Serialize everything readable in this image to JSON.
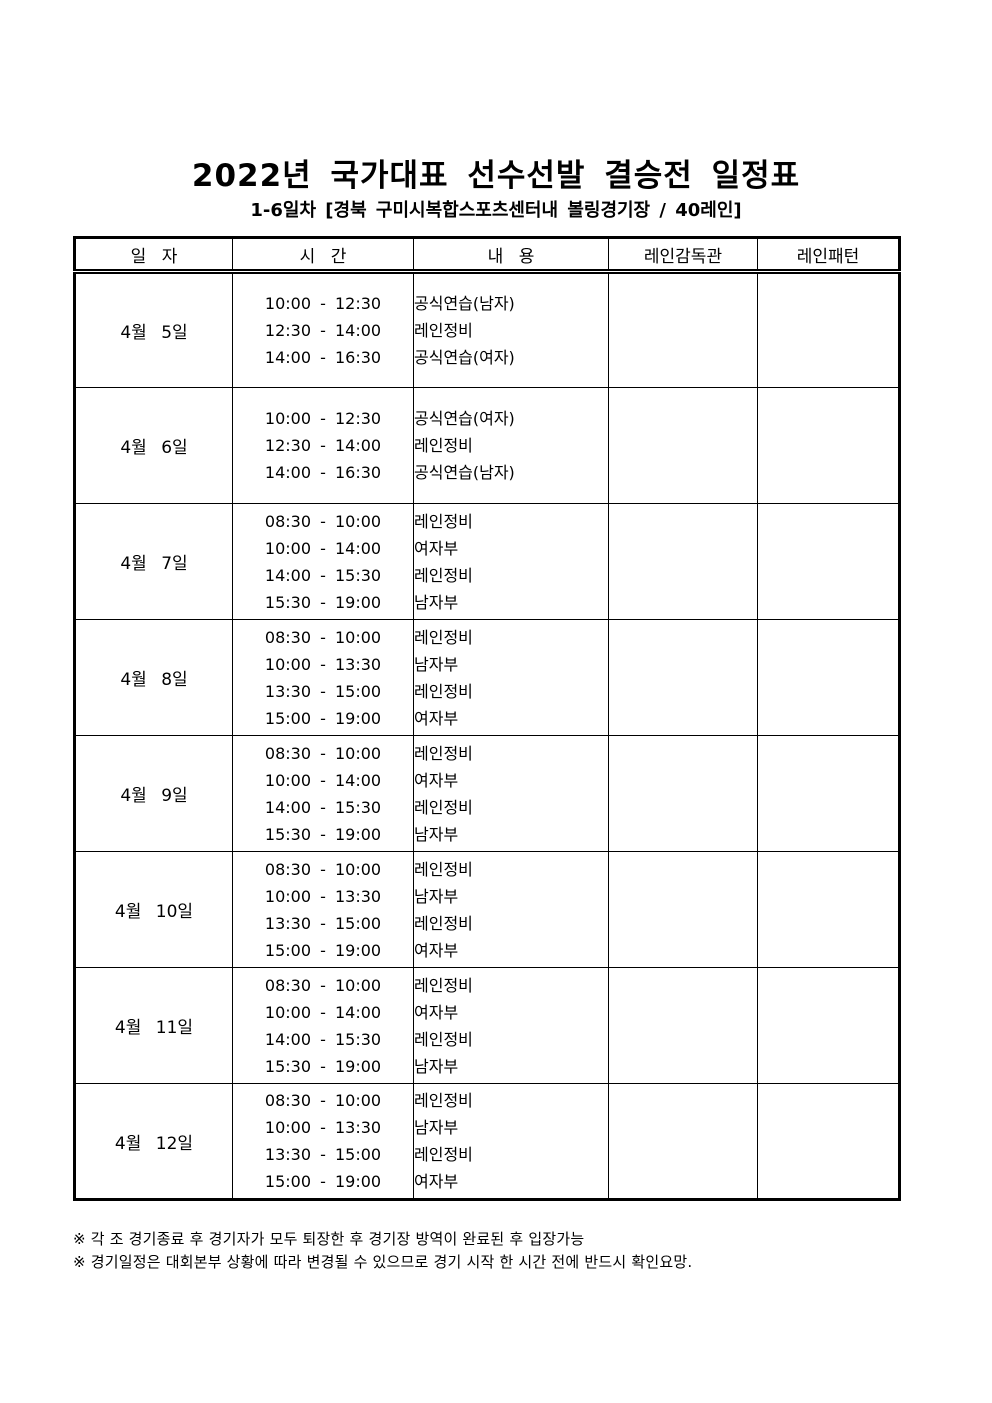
{
  "page": {
    "title": "2022년 국가대표 선수선발 결승전 일정표",
    "subtitle": "1-6일차 [경북 구미시복합스포츠센터내 볼링경기장 / 40레인]"
  },
  "table": {
    "headers": [
      "일 자",
      "시 간",
      "내 용",
      "레인감독관",
      "레인패턴"
    ],
    "rows": [
      {
        "date": "4월 5일",
        "times": [
          "10:00 - 12:30",
          "12:30 - 14:00",
          "14:00 - 16:30"
        ],
        "contents": [
          "공식연습(남자)",
          "레인정비",
          "공식연습(여자)"
        ],
        "lane_supervisor": "",
        "lane_pattern": ""
      },
      {
        "date": "4월 6일",
        "times": [
          "10:00 - 12:30",
          "12:30 - 14:00",
          "14:00 - 16:30"
        ],
        "contents": [
          "공식연습(여자)",
          "레인정비",
          "공식연습(남자)"
        ],
        "lane_supervisor": "",
        "lane_pattern": ""
      },
      {
        "date": "4월 7일",
        "times": [
          "08:30 - 10:00",
          "10:00 - 14:00",
          "14:00 - 15:30",
          "15:30 - 19:00"
        ],
        "contents": [
          "레인정비",
          "여자부",
          "레인정비",
          "남자부"
        ],
        "lane_supervisor": "",
        "lane_pattern": ""
      },
      {
        "date": "4월 8일",
        "times": [
          "08:30 - 10:00",
          "10:00 - 13:30",
          "13:30 - 15:00",
          "15:00 - 19:00"
        ],
        "contents": [
          "레인정비",
          "남자부",
          "레인정비",
          "여자부"
        ],
        "lane_supervisor": "",
        "lane_pattern": ""
      },
      {
        "date": "4월 9일",
        "times": [
          "08:30 - 10:00",
          "10:00 - 14:00",
          "14:00 - 15:30",
          "15:30 - 19:00"
        ],
        "contents": [
          "레인정비",
          "여자부",
          "레인정비",
          "남자부"
        ],
        "lane_supervisor": "",
        "lane_pattern": ""
      },
      {
        "date": "4월 10일",
        "times": [
          "08:30 - 10:00",
          "10:00 - 13:30",
          "13:30 - 15:00",
          "15:00 - 19:00"
        ],
        "contents": [
          "레인정비",
          "남자부",
          "레인정비",
          "여자부"
        ],
        "lane_supervisor": "",
        "lane_pattern": ""
      },
      {
        "date": "4월 11일",
        "times": [
          "08:30 - 10:00",
          "10:00 - 14:00",
          "14:00 - 15:30",
          "15:30 - 19:00"
        ],
        "contents": [
          "레인정비",
          "여자부",
          "레인정비",
          "남자부"
        ],
        "lane_supervisor": "",
        "lane_pattern": ""
      },
      {
        "date": "4월 12일",
        "times": [
          "08:30 - 10:00",
          "10:00 - 13:30",
          "13:30 - 15:00",
          "15:00 - 19:00"
        ],
        "contents": [
          "레인정비",
          "남자부",
          "레인정비",
          "여자부"
        ],
        "lane_supervisor": "",
        "lane_pattern": ""
      }
    ]
  },
  "footnotes": [
    "※ 각 조 경기종료 후 경기자가 모두 퇴장한 후 경기장 방역이 완료된 후 입장가능",
    "※ 경기일정은 대회본부 상황에 따라 변경될 수 있으므로 경기 시작 한 시간 전에 반드시 확인요망."
  ]
}
